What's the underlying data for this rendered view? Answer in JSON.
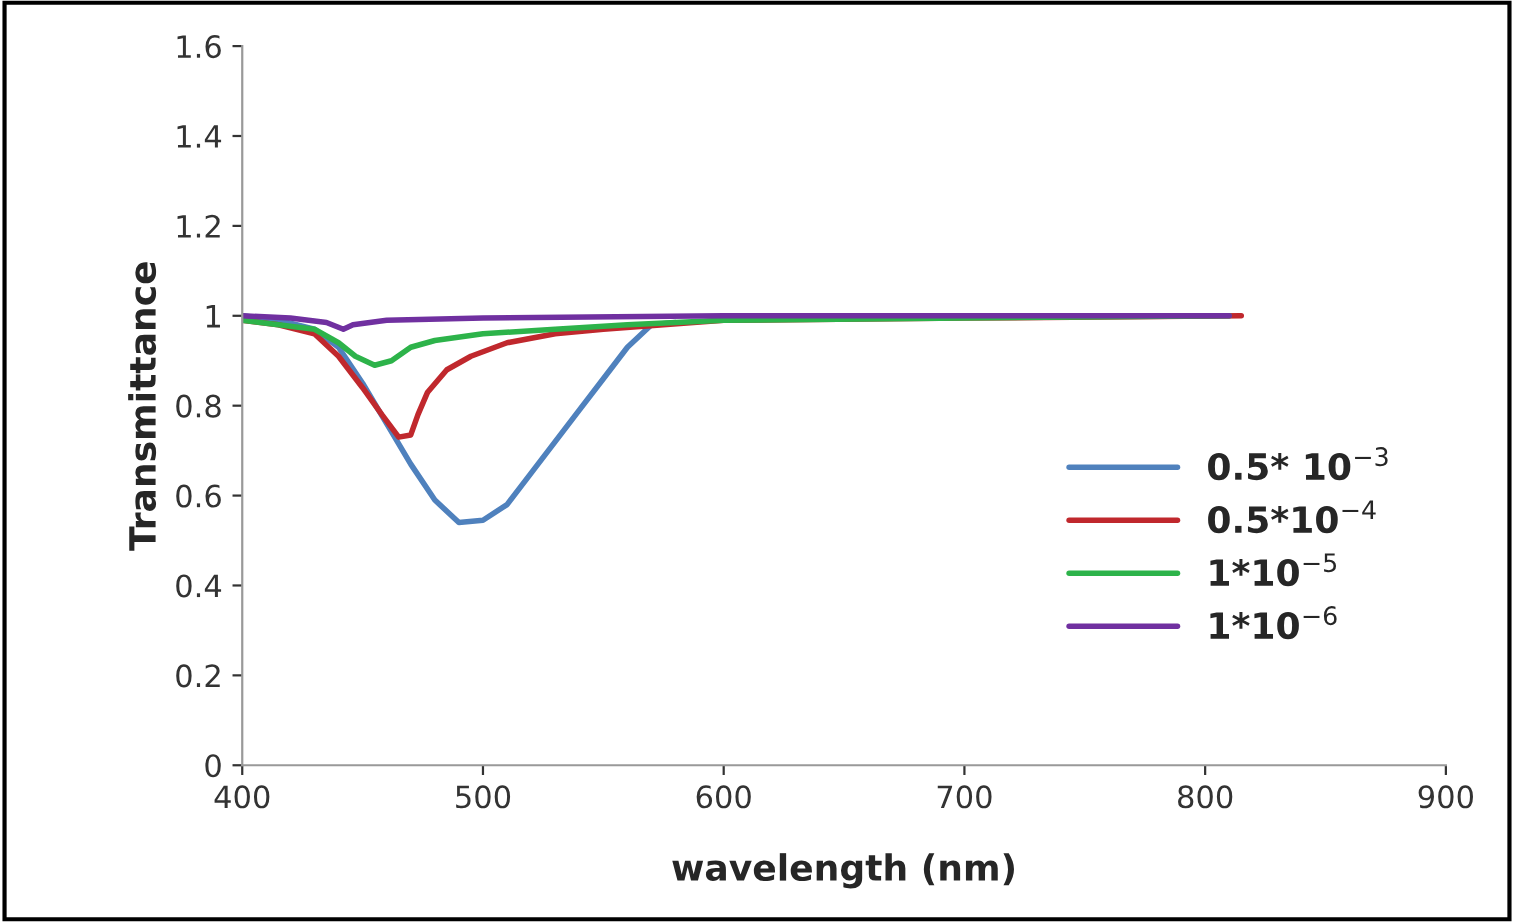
{
  "chart_data": {
    "type": "line",
    "xlabel": "wavelength (nm)",
    "ylabel": "Transmittance",
    "xlim": [
      400,
      900
    ],
    "xticks": [
      400,
      500,
      600,
      700,
      800,
      900
    ],
    "ylim": [
      0,
      1.6
    ],
    "yticks": [
      0,
      0.2,
      0.4,
      0.6,
      0.8,
      1,
      1.2,
      1.4,
      1.6
    ],
    "grid": false,
    "legend": "right",
    "marker": "none",
    "line_style": "solid",
    "series": [
      {
        "name": "0.5* 10$^{−3}$",
        "color": "#4f81bd",
        "x": [
          400,
          415,
          430,
          440,
          450,
          460,
          470,
          480,
          490,
          500,
          510,
          520,
          530,
          540,
          550,
          560,
          570,
          580
        ],
        "values": [
          1.0,
          0.99,
          0.97,
          0.93,
          0.85,
          0.76,
          0.67,
          0.59,
          0.54,
          0.545,
          0.58,
          0.65,
          0.72,
          0.79,
          0.86,
          0.93,
          0.98,
          0.985
        ]
      },
      {
        "name": "0.5*10$^{−4}$",
        "color": "#c0282d",
        "x": [
          400,
          415,
          430,
          440,
          450,
          458,
          465,
          470,
          473,
          477,
          485,
          495,
          510,
          530,
          550,
          600,
          700,
          815
        ],
        "values": [
          0.99,
          0.98,
          0.96,
          0.91,
          0.84,
          0.78,
          0.73,
          0.735,
          0.78,
          0.83,
          0.88,
          0.91,
          0.94,
          0.96,
          0.97,
          0.99,
          0.995,
          1.0
        ]
      },
      {
        "name": "1*10$^{−5}$",
        "color": "#2db34a",
        "x": [
          400,
          415,
          430,
          440,
          447,
          455,
          462,
          470,
          480,
          500,
          530,
          560,
          600,
          700,
          810
        ],
        "values": [
          0.99,
          0.98,
          0.97,
          0.94,
          0.91,
          0.89,
          0.9,
          0.93,
          0.945,
          0.96,
          0.97,
          0.98,
          0.99,
          0.995,
          1.0
        ]
      },
      {
        "name": "1*10$^{−6}$",
        "color": "#7030a0",
        "x": [
          400,
          420,
          435,
          442,
          446,
          460,
          500,
          600,
          700,
          810
        ],
        "values": [
          1.0,
          0.995,
          0.985,
          0.97,
          0.98,
          0.99,
          0.995,
          1.0,
          1.0,
          1.0
        ]
      }
    ]
  }
}
